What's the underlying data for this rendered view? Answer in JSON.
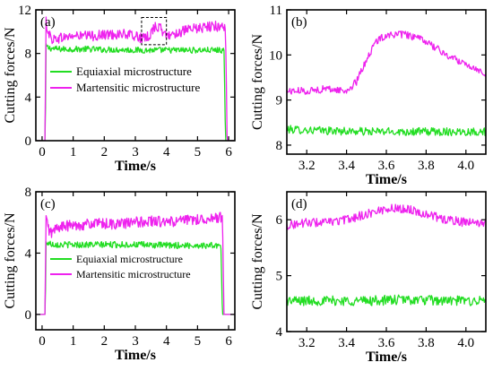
{
  "colors": {
    "equiaxial": "#22dd22",
    "martensitic": "#ee22ee",
    "axis": "#000000"
  },
  "chart_data": [
    {
      "id": "a",
      "type": "line",
      "panel_label": "(a)",
      "xlabel": "Time/s",
      "ylabel": "Cutting forces/N",
      "xlim": [
        -0.2,
        6.2
      ],
      "ylim": [
        0,
        12
      ],
      "xticks": [
        0,
        1,
        2,
        3,
        4,
        5,
        6
      ],
      "yticks": [
        0,
        4,
        8,
        12
      ],
      "grid": false,
      "legend_position": "center",
      "annotation": "dashed box from t=3.2 s to t=4.0 s, about 8.8–11.3 N",
      "series": [
        {
          "name": "Equiaxial microstructure",
          "color": "#22dd22",
          "x": [
            -0.2,
            0.1,
            0.13,
            0.2,
            0.5,
            1,
            1.5,
            2,
            2.5,
            3,
            3.5,
            4,
            4.5,
            5,
            5.5,
            5.85,
            5.9,
            5.95,
            6.2
          ],
          "y": [
            0,
            0,
            8.7,
            8.5,
            8.4,
            8.4,
            8.4,
            8.35,
            8.35,
            8.3,
            8.3,
            8.3,
            8.3,
            8.3,
            8.3,
            8.3,
            0,
            0,
            0
          ]
        },
        {
          "name": "Martensitic microstructure",
          "color": "#ee22ee",
          "x": [
            -0.2,
            0.1,
            0.12,
            0.2,
            0.3,
            0.5,
            1,
            1.5,
            2,
            2.5,
            3,
            3.3,
            3.5,
            3.6,
            3.8,
            4,
            4.2,
            4.5,
            5,
            5.5,
            5.85,
            5.9,
            5.95,
            6.2
          ],
          "y": [
            0,
            0,
            11,
            10,
            9.3,
            9.4,
            9.6,
            9.6,
            9.7,
            9.8,
            9.6,
            9.3,
            9.8,
            10.5,
            10.3,
            9.6,
            9.8,
            10.0,
            10.3,
            10.5,
            10.5,
            10.5,
            0,
            0
          ]
        }
      ]
    },
    {
      "id": "b",
      "type": "line",
      "panel_label": "(b)",
      "xlabel": "Time/s",
      "ylabel": "Cutting forces/N",
      "xlim": [
        3.1,
        4.1
      ],
      "ylim": [
        7.8,
        11
      ],
      "xticks": [
        3.2,
        3.4,
        3.6,
        3.8,
        4.0
      ],
      "yticks": [
        8,
        9,
        10,
        11
      ],
      "grid": false,
      "series": [
        {
          "name": "Equiaxial microstructure",
          "color": "#22dd22",
          "x": [
            3.1,
            3.3,
            3.5,
            3.7,
            3.9,
            4.1
          ],
          "y": [
            8.35,
            8.32,
            8.3,
            8.3,
            8.3,
            8.3
          ]
        },
        {
          "name": "Martensitic microstructure",
          "color": "#ee22ee",
          "x": [
            3.1,
            3.2,
            3.3,
            3.4,
            3.45,
            3.5,
            3.55,
            3.6,
            3.7,
            3.8,
            3.9,
            4.0,
            4.1
          ],
          "y": [
            9.2,
            9.2,
            9.25,
            9.2,
            9.4,
            9.9,
            10.3,
            10.45,
            10.45,
            10.3,
            10.0,
            9.8,
            9.6
          ]
        }
      ]
    },
    {
      "id": "c",
      "type": "line",
      "panel_label": "(c)",
      "xlabel": "Time/s",
      "ylabel": "Cutting forces/N",
      "xlim": [
        -0.2,
        6.2
      ],
      "ylim": [
        -1,
        8
      ],
      "xticks": [
        0,
        1,
        2,
        3,
        4,
        5,
        6
      ],
      "yticks": [
        0,
        4,
        8
      ],
      "grid": false,
      "legend_position": "center",
      "series": [
        {
          "name": "Equiaxial microstructure",
          "color": "#22dd22",
          "x": [
            -0.2,
            0.1,
            0.13,
            0.3,
            0.6,
            1,
            2,
            3,
            4,
            5,
            5.75,
            5.8,
            6.2
          ],
          "y": [
            0,
            0,
            4.7,
            4.6,
            4.55,
            4.55,
            4.55,
            4.55,
            4.5,
            4.5,
            4.5,
            0,
            0
          ]
        },
        {
          "name": "Martensitic microstructure",
          "color": "#ee22ee",
          "x": [
            -0.2,
            0.1,
            0.12,
            0.2,
            0.3,
            0.5,
            1,
            1.5,
            2,
            2.5,
            3,
            3.5,
            4,
            4.5,
            5,
            5.5,
            5.75,
            5.8,
            5.85,
            6.2
          ],
          "y": [
            0,
            0,
            6.4,
            5.6,
            5.3,
            5.7,
            5.8,
            5.9,
            5.9,
            5.9,
            6.0,
            6.1,
            6.0,
            6.1,
            6.2,
            6.3,
            6.3,
            6.3,
            0,
            0
          ]
        }
      ]
    },
    {
      "id": "d",
      "type": "line",
      "panel_label": "(d)",
      "xlabel": "Time/s",
      "ylabel": "Cutting forces/N",
      "xlim": [
        3.1,
        4.1
      ],
      "ylim": [
        4,
        6.5
      ],
      "xticks": [
        3.2,
        3.4,
        3.6,
        3.8,
        4.0
      ],
      "yticks": [
        4,
        5,
        6
      ],
      "grid": false,
      "series": [
        {
          "name": "Equiaxial microstructure",
          "color": "#22dd22",
          "x": [
            3.1,
            3.3,
            3.5,
            3.7,
            3.9,
            4.1
          ],
          "y": [
            4.55,
            4.55,
            4.55,
            4.57,
            4.55,
            4.55
          ]
        },
        {
          "name": "Martensitic microstructure",
          "color": "#ee22ee",
          "x": [
            3.1,
            3.2,
            3.3,
            3.4,
            3.5,
            3.6,
            3.7,
            3.8,
            3.9,
            4.0,
            4.1
          ],
          "y": [
            5.9,
            5.95,
            5.95,
            6.0,
            6.1,
            6.2,
            6.2,
            6.1,
            6.0,
            5.95,
            5.95
          ]
        }
      ]
    }
  ]
}
